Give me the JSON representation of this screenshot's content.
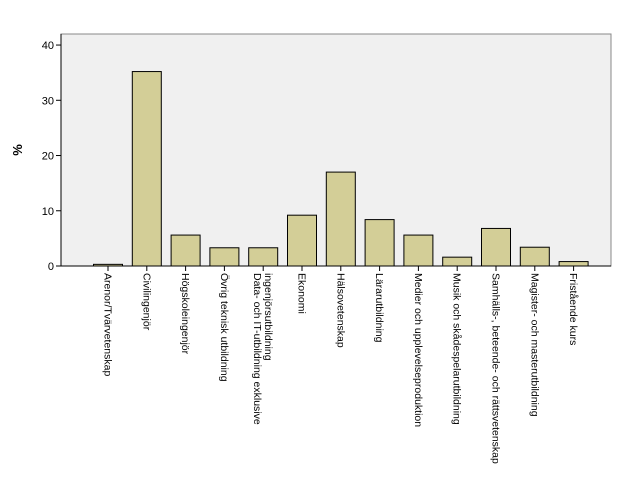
{
  "chart_data": {
    "type": "bar",
    "title": "",
    "xlabel": "",
    "ylabel": "%",
    "ylim": [
      0,
      42
    ],
    "yticks": [
      0,
      10,
      20,
      30,
      40
    ],
    "grid": false,
    "categories": [
      "Arenor/Tvärvetenskap",
      "Civilingenjör",
      "Högskoleingenjör",
      "Övrig teknisk utbildning",
      [
        "Data- och IT-utbildning exklusive",
        "ingenjörsutbildning"
      ],
      "Ekonomi",
      "Hälsovetenskap",
      "Lärarutbildning",
      "Medier och upplevelseproduktion",
      "Musik och skådespelarutbildning",
      "Samhälls-, beteende- och rättsvetenskap",
      "Magister- och masterutbildning",
      "Fristående kurs"
    ],
    "values": [
      0.3,
      35.2,
      5.6,
      3.3,
      3.3,
      9.2,
      17.0,
      8.4,
      5.6,
      1.6,
      6.8,
      3.4,
      0.8
    ],
    "colors": {
      "bar_fill": "#d3ce97",
      "bar_stroke": "#000000",
      "plot_background": "#f0f0f0",
      "axis": "#000000"
    }
  }
}
